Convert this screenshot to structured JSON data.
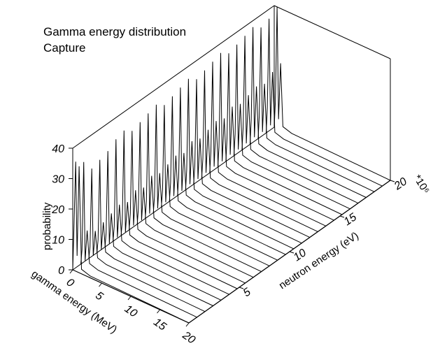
{
  "chart_data": {
    "type": "3d-line-waterfall",
    "title": "Gamma energy distribution",
    "subtitle": "Capture",
    "xlabel": "gamma energy (MeV)",
    "ylabel": "neutron energy (eV)",
    "zlabel": "probability",
    "xlim": [
      0,
      20
    ],
    "ylim": [
      0,
      20
    ],
    "zlim": [
      0,
      40
    ],
    "x_ticks": [
      "0",
      "5",
      "10",
      "15",
      "20"
    ],
    "y_ticks": [
      "5",
      "10",
      "15",
      "20"
    ],
    "z_ticks": [
      "0",
      "10",
      "20",
      "30",
      "40"
    ],
    "y_multiplier": "*10⁶",
    "grid": false,
    "legend": "none",
    "line_color": "#000000",
    "series_neutron_energy": [
      0.0,
      0.8,
      1.6,
      2.4,
      3.2,
      4.0,
      4.8,
      5.6,
      6.4,
      7.2,
      8.0,
      8.8,
      9.6,
      10.4,
      11.2,
      12.0,
      12.8,
      13.6,
      14.4,
      15.2,
      16.0,
      16.8,
      17.6,
      18.4,
      19.2,
      20.0
    ],
    "peak_gamma_energy": 0.5,
    "peak_probability": [
      36,
      34,
      30,
      31,
      32,
      34,
      35,
      33,
      34,
      35,
      36,
      34,
      35,
      36,
      37,
      35,
      36,
      37,
      38,
      36,
      37,
      38,
      39,
      37,
      38,
      40
    ],
    "secondary_peak_probability": [
      35,
      12,
      10,
      11,
      12,
      13,
      12,
      14,
      13,
      15,
      14,
      15,
      16,
      15,
      17,
      16,
      17,
      18,
      17,
      19,
      18,
      19,
      20,
      19,
      21,
      22
    ]
  }
}
